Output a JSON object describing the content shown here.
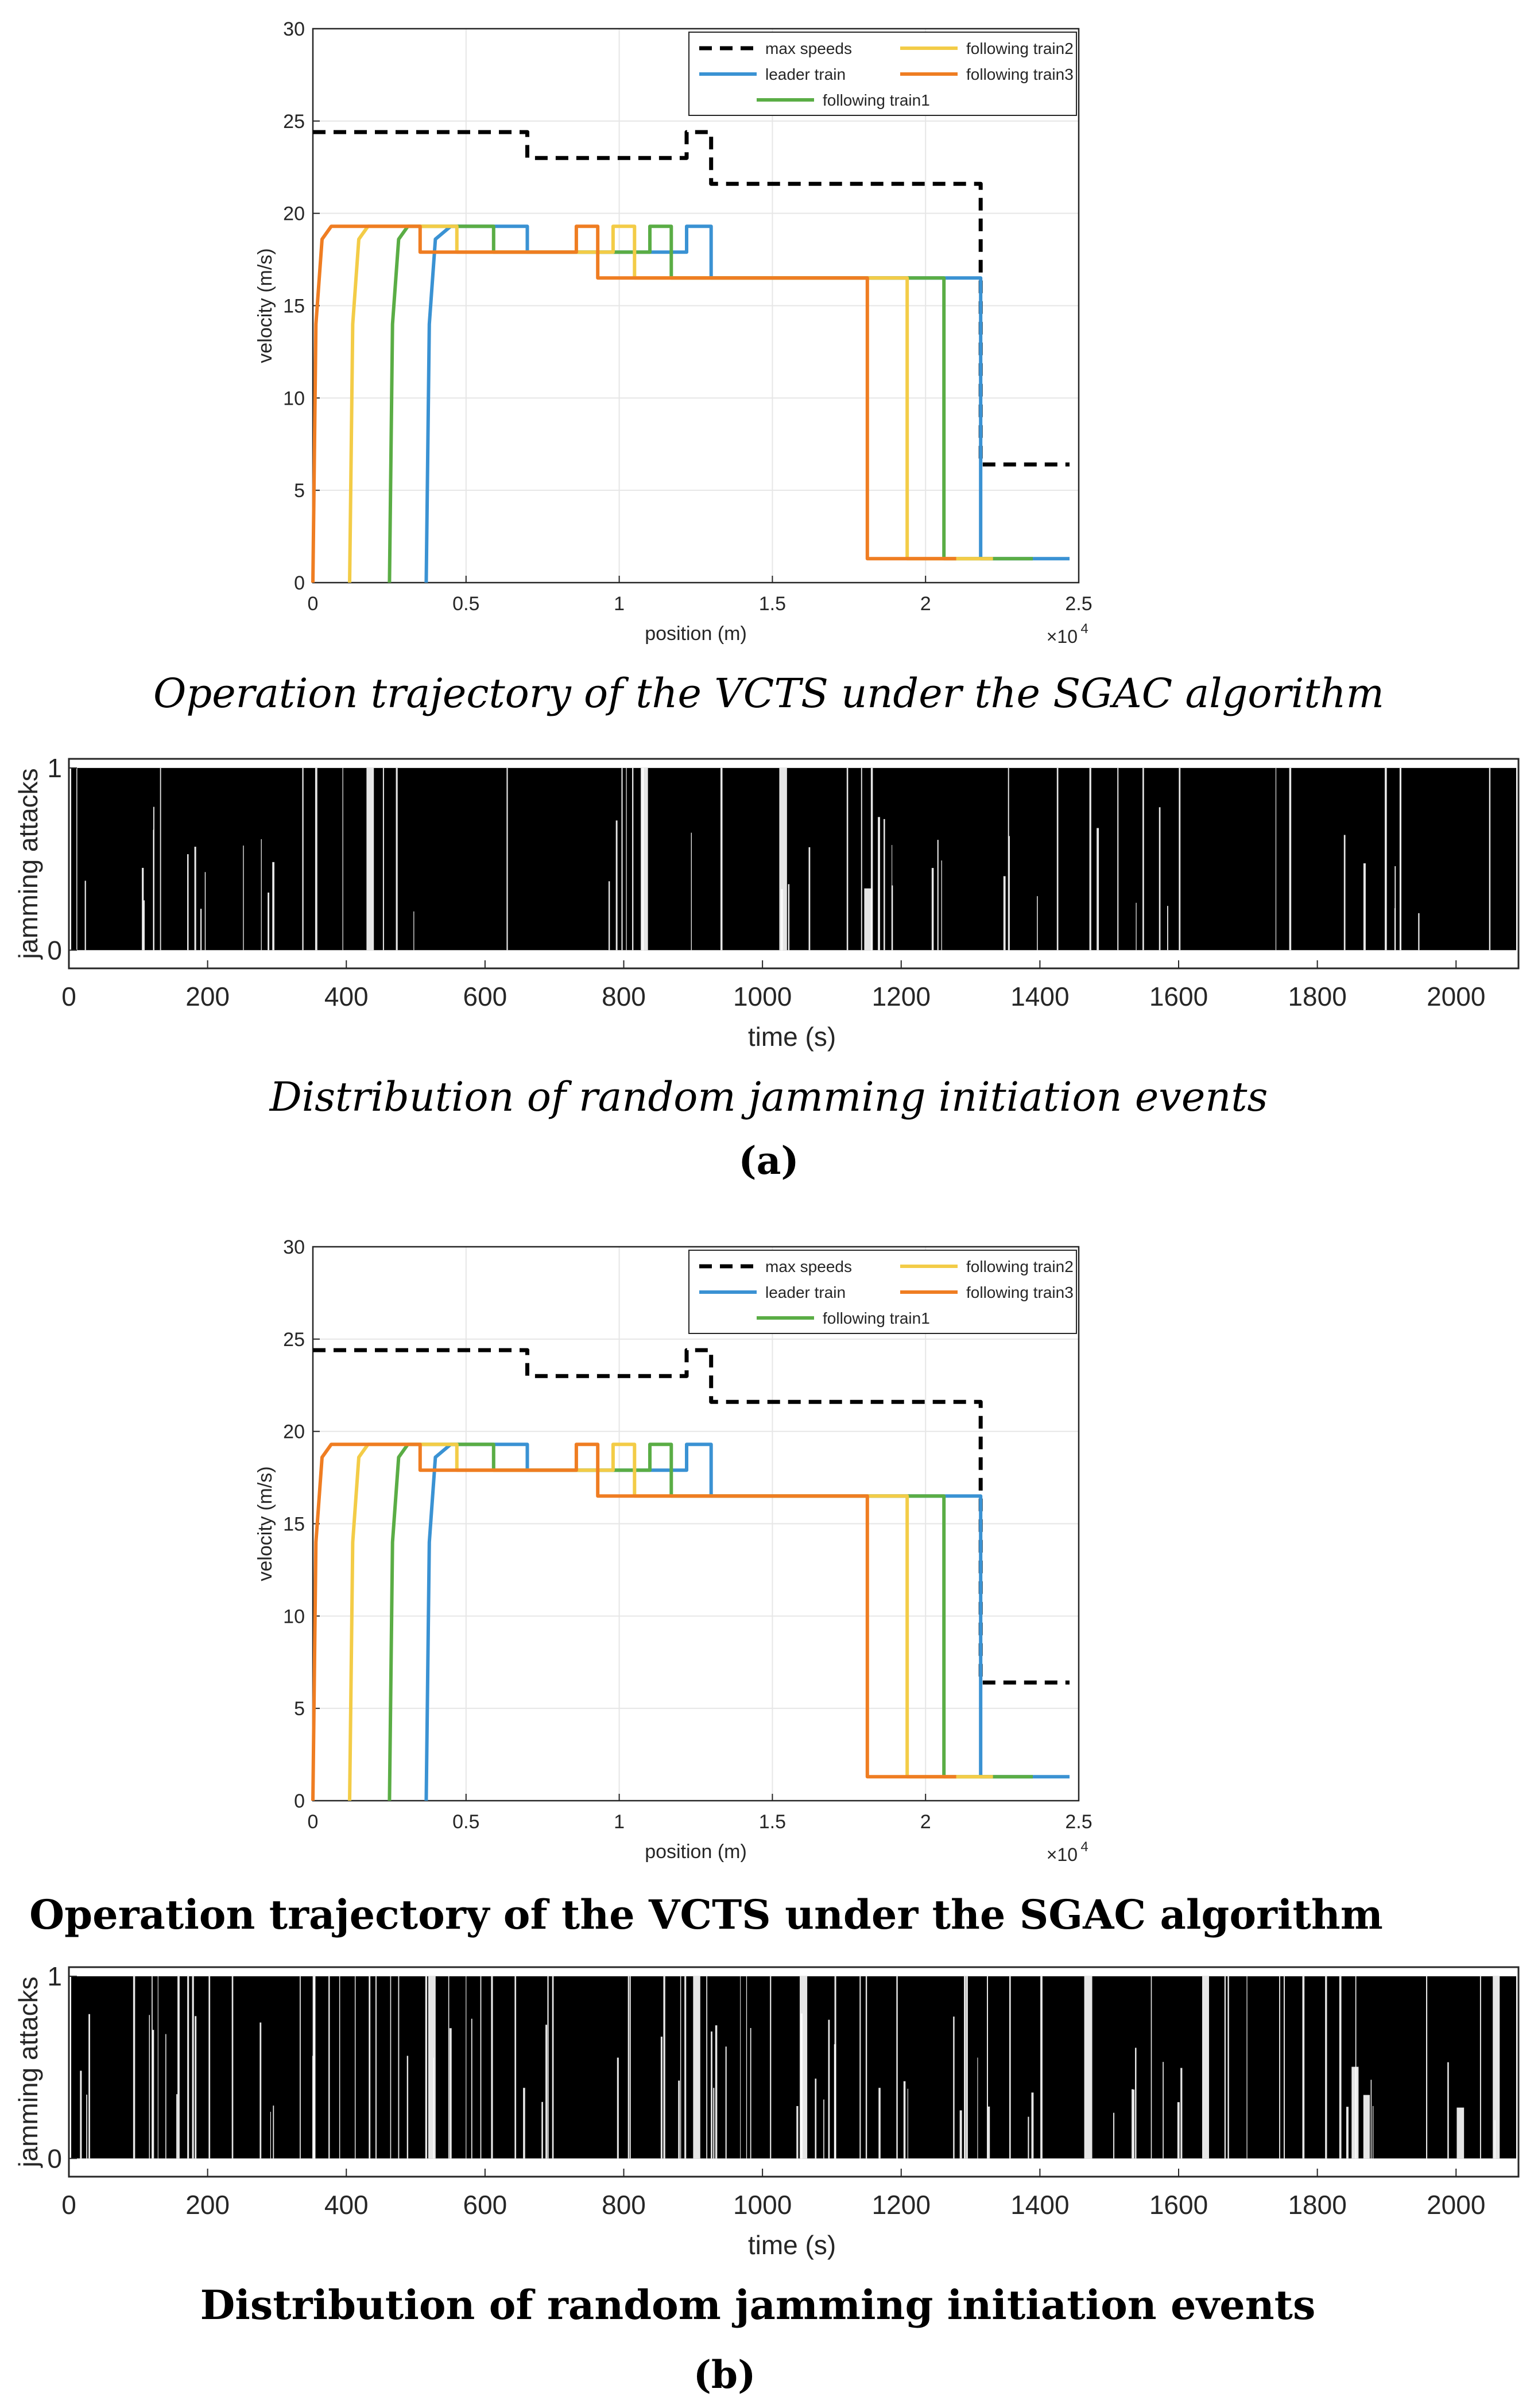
{
  "captions": {
    "a_velocity": "Operation trajectory of the VCTS under the SGAC algorithm",
    "a_jamming": "Distribution of random jamming initiation events",
    "a_label": "(a)",
    "b_velocity": "Operation trajectory of the VCTS under the SGAC algorithm",
    "b_jamming": "Distribution of random jamming initiation events",
    "b_label": "(b)"
  },
  "chart_data": [
    {
      "id": "velocity_a",
      "type": "line",
      "title": "",
      "xlabel": "position (m)",
      "ylabel": "velocity (m/s)",
      "x_exponent": "×10",
      "x_exponent_power": "4",
      "xlim": [
        0,
        2.5
      ],
      "ylim": [
        0,
        30
      ],
      "xticks": [
        0,
        0.5,
        1,
        1.5,
        2,
        2.5
      ],
      "xtick_labels": [
        "0",
        "0.5",
        "1",
        "1.5",
        "2",
        "2.5"
      ],
      "yticks": [
        0,
        5,
        10,
        15,
        20,
        25,
        30
      ],
      "ytick_labels": [
        "0",
        "5",
        "10",
        "15",
        "20",
        "25",
        "30"
      ],
      "legend": [
        "max speeds",
        "leader train",
        "following train1",
        "following train2",
        "following train3"
      ],
      "series": [
        {
          "name": "max speeds",
          "color": "#000000",
          "dashed": true,
          "x": [
            0,
            0.7,
            0.7,
            1.22,
            1.22,
            1.3,
            1.3,
            2.18,
            2.18,
            2.47
          ],
          "y": [
            24.4,
            24.4,
            23.0,
            23.0,
            24.4,
            24.4,
            21.6,
            21.6,
            6.4,
            6.4
          ]
        },
        {
          "name": "leader train",
          "color": "#3a92d3",
          "x": [
            0.37,
            0.38,
            0.4,
            0.45,
            0.7,
            0.7,
            1.22,
            1.22,
            1.3,
            1.3,
            2.18,
            2.18,
            2.47
          ],
          "y": [
            0,
            14.0,
            18.6,
            19.3,
            19.3,
            17.9,
            17.9,
            19.3,
            19.3,
            16.5,
            16.5,
            1.3,
            1.3
          ]
        },
        {
          "name": "following train1",
          "color": "#5aad45",
          "x": [
            0.25,
            0.26,
            0.28,
            0.31,
            0.59,
            0.59,
            1.1,
            1.1,
            1.17,
            1.17,
            2.06,
            2.06,
            2.35
          ],
          "y": [
            0,
            14.0,
            18.6,
            19.3,
            19.3,
            17.9,
            17.9,
            19.3,
            19.3,
            16.5,
            16.5,
            1.3,
            1.3
          ]
        },
        {
          "name": "following train2",
          "color": "#f3cc47",
          "x": [
            0.12,
            0.13,
            0.15,
            0.18,
            0.47,
            0.47,
            0.98,
            0.98,
            1.05,
            1.05,
            1.94,
            1.94,
            2.22
          ],
          "y": [
            0,
            14.0,
            18.6,
            19.3,
            19.3,
            17.9,
            17.9,
            19.3,
            19.3,
            16.5,
            16.5,
            1.3,
            1.3
          ]
        },
        {
          "name": "following train3",
          "color": "#ef7d22",
          "x": [
            0,
            0.01,
            0.03,
            0.06,
            0.35,
            0.35,
            0.86,
            0.86,
            0.93,
            0.93,
            1.81,
            1.81,
            2.1
          ],
          "y": [
            0,
            14.0,
            18.6,
            19.3,
            19.3,
            17.9,
            17.9,
            19.3,
            19.3,
            16.5,
            16.5,
            1.3,
            1.3
          ]
        }
      ]
    },
    {
      "id": "jamming_a",
      "type": "line",
      "title": "",
      "xlabel": "time (s)",
      "ylabel": "jamming attacks",
      "xlim": [
        0,
        2090
      ],
      "ylim": [
        -0.1,
        1.05
      ],
      "xticks": [
        0,
        200,
        400,
        600,
        800,
        1000,
        1200,
        1400,
        1600,
        1800,
        2000
      ],
      "xtick_labels": [
        "0",
        "200",
        "400",
        "600",
        "800",
        "1000",
        "1200",
        "1400",
        "1600",
        "1800",
        "2000"
      ],
      "yticks": [
        0,
        1
      ],
      "ytick_labels": [
        "0",
        "1"
      ],
      "series": [
        {
          "name": "jamming attacks",
          "values": "dense random 0/1 switching over 0-2090 s",
          "x_range": [
            0,
            2090
          ]
        }
      ]
    },
    {
      "id": "velocity_b",
      "type": "line",
      "title": "",
      "xlabel": "position (m)",
      "ylabel": "velocity (m/s)",
      "x_exponent": "×10",
      "x_exponent_power": "4",
      "xlim": [
        0,
        2.5
      ],
      "ylim": [
        0,
        30
      ],
      "xticks": [
        0,
        0.5,
        1,
        1.5,
        2,
        2.5
      ],
      "xtick_labels": [
        "0",
        "0.5",
        "1",
        "1.5",
        "2",
        "2.5"
      ],
      "yticks": [
        0,
        5,
        10,
        15,
        20,
        25,
        30
      ],
      "ytick_labels": [
        "0",
        "5",
        "10",
        "15",
        "20",
        "25",
        "30"
      ],
      "legend": [
        "max speeds",
        "leader train",
        "following train1",
        "following train2",
        "following train3"
      ],
      "series": [
        {
          "name": "max speeds",
          "color": "#000000",
          "dashed": true,
          "x": [
            0,
            0.7,
            0.7,
            1.22,
            1.22,
            1.3,
            1.3,
            2.18,
            2.18,
            2.47
          ],
          "y": [
            24.4,
            24.4,
            23.0,
            23.0,
            24.4,
            24.4,
            21.6,
            21.6,
            6.4,
            6.4
          ]
        },
        {
          "name": "leader train",
          "color": "#3a92d3",
          "x": [
            0.37,
            0.38,
            0.4,
            0.45,
            0.7,
            0.7,
            1.22,
            1.22,
            1.3,
            1.3,
            2.18,
            2.18,
            2.47
          ],
          "y": [
            0,
            14.0,
            18.6,
            19.3,
            19.3,
            17.9,
            17.9,
            19.3,
            19.3,
            16.5,
            16.5,
            1.3,
            1.3
          ]
        },
        {
          "name": "following train1",
          "color": "#5aad45",
          "x": [
            0.25,
            0.26,
            0.28,
            0.31,
            0.59,
            0.59,
            1.1,
            1.1,
            1.17,
            1.17,
            2.06,
            2.06,
            2.35
          ],
          "y": [
            0,
            14.0,
            18.6,
            19.3,
            19.3,
            17.9,
            17.9,
            19.3,
            19.3,
            16.5,
            16.5,
            1.3,
            1.3
          ]
        },
        {
          "name": "following train2",
          "color": "#f3cc47",
          "x": [
            0.12,
            0.13,
            0.15,
            0.18,
            0.47,
            0.47,
            0.98,
            0.98,
            1.05,
            1.05,
            1.94,
            1.94,
            2.22
          ],
          "y": [
            0,
            14.0,
            18.6,
            19.3,
            19.3,
            17.9,
            17.9,
            19.3,
            19.3,
            16.5,
            16.5,
            1.3,
            1.3
          ]
        },
        {
          "name": "following train3",
          "color": "#ef7d22",
          "x": [
            0,
            0.01,
            0.03,
            0.06,
            0.35,
            0.35,
            0.86,
            0.86,
            0.93,
            0.93,
            1.81,
            1.81,
            2.1
          ],
          "y": [
            0,
            14.0,
            18.6,
            19.3,
            19.3,
            17.9,
            17.9,
            19.3,
            19.3,
            16.5,
            16.5,
            1.3,
            1.3
          ]
        }
      ]
    },
    {
      "id": "jamming_b",
      "type": "line",
      "title": "",
      "xlabel": "time (s)",
      "ylabel": "jamming attacks",
      "xlim": [
        0,
        2090
      ],
      "ylim": [
        -0.1,
        1.05
      ],
      "xticks": [
        0,
        200,
        400,
        600,
        800,
        1000,
        1200,
        1400,
        1600,
        1800,
        2000
      ],
      "xtick_labels": [
        "0",
        "200",
        "400",
        "600",
        "800",
        "1000",
        "1200",
        "1400",
        "1600",
        "1800",
        "2000"
      ],
      "yticks": [
        0,
        1
      ],
      "ytick_labels": [
        "0",
        "1"
      ],
      "series": [
        {
          "name": "jamming attacks",
          "values": "dense random 0/1 switching over 0-2090 s",
          "x_range": [
            0,
            2090
          ]
        }
      ]
    }
  ]
}
